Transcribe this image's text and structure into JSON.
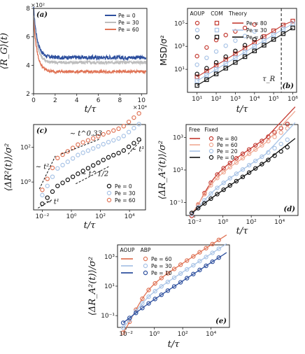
{
  "colors": {
    "blue_dark": "#2d4f9e",
    "blue_light": "#a8c3e6",
    "red_dark": "#c43a31",
    "red_mid": "#e07456",
    "red_light": "#f0a993",
    "gray": "#bdbdbd",
    "black": "#111111"
  },
  "chart_data": [
    {
      "id": "a",
      "type": "line",
      "panel_label": "(a)",
      "xlabel": "t/τ",
      "ylabel": "⟨R_G⟩(t)",
      "x_multiplier": "×10⁴",
      "y_multiplier": "×10²",
      "xlim": [
        0,
        10.5
      ],
      "ylim": [
        2,
        8
      ],
      "xticks": [
        "0",
        "2",
        "4",
        "6",
        "8",
        "10"
      ],
      "yticks": [
        "2",
        "4",
        "6",
        "8"
      ],
      "legend_placement": "top-right",
      "series": [
        {
          "name": "Pe = 0",
          "color": "#2d4f9e",
          "y0": 8.0,
          "plateau": 4.55,
          "noise": 0.14
        },
        {
          "name": "Pe = 30",
          "color": "#bdbdbd",
          "y0": 7.6,
          "plateau": 4.2,
          "noise": 0.12
        },
        {
          "name": "Pe = 60",
          "color": "#e07456",
          "y0": 7.2,
          "plateau": 3.55,
          "noise": 0.1
        }
      ]
    },
    {
      "id": "b",
      "type": "scatter",
      "panel_label": "(b)",
      "xlabel": "t/τ",
      "ylabel": "MSD/σ²",
      "xscale": "log",
      "yscale": "log",
      "xlim_exp": [
        0.5,
        6.2
      ],
      "ylim_exp": [
        -1,
        6.3
      ],
      "xtick_labels": [
        "10¹",
        "10²",
        "10³",
        "10⁴",
        "10⁵",
        "10⁶"
      ],
      "ytick_labels": [
        "10¹",
        "10³",
        "10⁵"
      ],
      "vline_label": "τ_R",
      "vline_x_exp": 5.4,
      "legend_headers": [
        "AOUP",
        "COM",
        "Theory"
      ],
      "legend_placement": "top-left",
      "series": [
        {
          "name": "Pe = 80",
          "color": "#c43a31",
          "aoup": [
            [
              1,
              2.15
            ],
            [
              1.5,
              2.9
            ],
            [
              2,
              3.55
            ],
            [
              2.5,
              3.98
            ],
            [
              3,
              4.3
            ],
            [
              3.5,
              4.6
            ],
            [
              4,
              4.9
            ]
          ],
          "com": [
            [
              1,
              0.35
            ],
            [
              1.5,
              0.85
            ],
            [
              2,
              1.35
            ],
            [
              2.5,
              1.85
            ],
            [
              3,
              2.35
            ],
            [
              3.5,
              2.85
            ],
            [
              4,
              3.35
            ],
            [
              4.5,
              3.85
            ],
            [
              5,
              4.35
            ],
            [
              5.5,
              4.85
            ],
            [
              6,
              5.2
            ]
          ]
        },
        {
          "name": "Pe = 30",
          "color": "#a8c3e6",
          "aoup": [
            [
              1,
              1.4
            ],
            [
              1.5,
              2.0
            ],
            [
              2,
              2.55
            ],
            [
              2.5,
              3.05
            ],
            [
              3,
              3.5
            ],
            [
              3.5,
              3.9
            ],
            [
              4,
              4.3
            ]
          ],
          "com": [
            [
              1,
              0.0
            ],
            [
              1.5,
              0.5
            ],
            [
              2,
              1.0
            ],
            [
              2.5,
              1.5
            ],
            [
              3,
              2.0
            ],
            [
              3.5,
              2.5
            ],
            [
              4,
              3.0
            ],
            [
              4.5,
              3.5
            ],
            [
              5,
              4.0
            ],
            [
              5.5,
              4.5
            ],
            [
              6,
              4.95
            ]
          ]
        },
        {
          "name": "Pe = 0",
          "color": "#111111",
          "aoup": [
            [
              1,
              0.6
            ],
            [
              1.5,
              1.1
            ],
            [
              2,
              1.6
            ],
            [
              2.5,
              2.1
            ],
            [
              3,
              2.6
            ],
            [
              3.5,
              3.1
            ],
            [
              4,
              3.6
            ]
          ],
          "com": [
            [
              1,
              -0.4
            ],
            [
              1.5,
              0.1
            ],
            [
              2,
              0.6
            ],
            [
              2.5,
              1.1
            ],
            [
              3,
              1.6
            ],
            [
              3.5,
              2.1
            ],
            [
              4,
              2.6
            ],
            [
              4.5,
              3.1
            ],
            [
              5,
              3.6
            ],
            [
              5.5,
              4.1
            ],
            [
              6,
              4.6
            ]
          ]
        }
      ]
    },
    {
      "id": "c",
      "type": "scatter",
      "panel_label": "(c)",
      "xlabel": "t/τ",
      "ylabel": "⟨ΔR²(t)⟩/σ²",
      "xscale": "log",
      "yscale": "log",
      "xtick_labels": [
        "10⁻²",
        "10⁰",
        "10²",
        "10⁴"
      ],
      "ytick_labels": [
        "10⁰",
        "10²"
      ],
      "annotations": [
        "∼ t²",
        "∼ t^0.33",
        "∼ t^1/2",
        "∼ t¹",
        "∼ t¹"
      ],
      "legend_placement": "bottom-right",
      "series": [
        {
          "name": "Pe = 0",
          "color": "#111111"
        },
        {
          "name": "Pe = 30",
          "color": "#a8c3e6"
        },
        {
          "name": "Pe = 60",
          "color": "#e07456"
        }
      ]
    },
    {
      "id": "d",
      "type": "scatter",
      "panel_label": "(d)",
      "xlabel": "t/τ",
      "ylabel": "⟨ΔR_A²(t)⟩/σ²",
      "xscale": "log",
      "yscale": "log",
      "xtick_labels": [
        "10⁻²",
        "10⁰",
        "10²",
        "10⁴"
      ],
      "ytick_labels": [
        "10⁻¹",
        "10¹",
        "10³"
      ],
      "legend_headers": [
        "Free",
        "Fixed"
      ],
      "legend_placement": "top-left",
      "series": [
        {
          "name": "Pe = 80",
          "color": "#c43a31"
        },
        {
          "name": "Pe = 60",
          "color": "#f0a993"
        },
        {
          "name": "Pe = 20",
          "color": "#a8c3e6"
        },
        {
          "name": "Pe = 0",
          "color": "#111111"
        }
      ]
    },
    {
      "id": "e",
      "type": "scatter",
      "panel_label": "(e)",
      "xlabel": "t/τ",
      "ylabel": "⟨ΔR_A²(t)⟩/σ²",
      "xscale": "log",
      "yscale": "log",
      "xtick_labels": [
        "10⁻²",
        "10⁰",
        "10²",
        "10⁴"
      ],
      "ytick_labels": [
        "10⁻¹",
        "10¹",
        "10³"
      ],
      "legend_headers": [
        "AOUP",
        "ABP"
      ],
      "legend_placement": "top-left",
      "series": [
        {
          "name": "Pe = 60",
          "color": "#e07456"
        },
        {
          "name": "Pe = 30",
          "color": "#a8c3e6"
        },
        {
          "name": "Pe = 10",
          "color": "#2d4f9e"
        }
      ]
    }
  ]
}
